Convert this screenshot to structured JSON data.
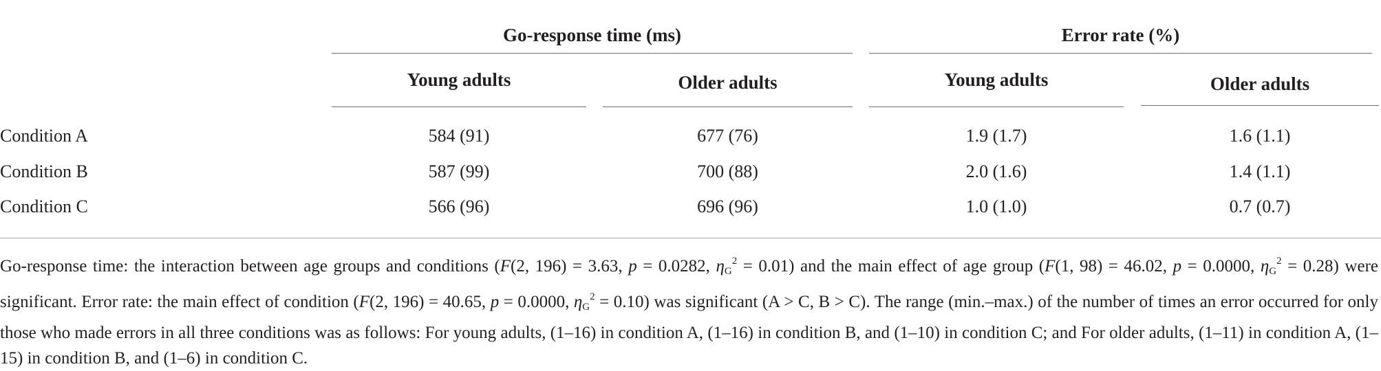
{
  "table": {
    "groups": [
      {
        "label": "Go-response time (ms)"
      },
      {
        "label": "Error rate (%)"
      }
    ],
    "subheaders": [
      "Young adults",
      "Older adults",
      "Young adults",
      "Older adults"
    ],
    "rows": [
      {
        "label": "Condition A",
        "cells": [
          "584 (91)",
          "677 (76)",
          "1.9 (1.7)",
          "1.6 (1.1)"
        ]
      },
      {
        "label": "Condition B",
        "cells": [
          "587 (99)",
          "700 (88)",
          "2.0 (1.6)",
          "1.4 (1.1)"
        ]
      },
      {
        "label": "Condition C",
        "cells": [
          "566 (96)",
          "696 (96)",
          "1.0 (1.0)",
          "0.7 (0.7)"
        ]
      }
    ]
  },
  "footnote": {
    "s1": "Go-response time: the interaction between age groups and conditions (",
    "f": "F",
    "s2": "(2, 196) = 3.63, ",
    "p": "p",
    "s3": " = 0.0282, ",
    "eta": "η",
    "g": "G",
    "two": "2",
    "s4": " = 0.01) and the main effect of age group (",
    "s5": "(1, 98) = 46.02, ",
    "s6": " = 0.0000, ",
    "s7": " = 0.28) were significant. Error rate: the main effect of condition (",
    "s8": "(2, 196) = 40.65, ",
    "s9": " = 0.0000, ",
    "s10": " = 0.10) was significant (A > C, B > C). The range (min.–max.) of the number of times an error occurred for only those who made errors in all three conditions was as follows: For young adults, (1–16) in condition A, (1–16) in condition B, and (1–10) in condition C; and For older adults, (1–11) in condition A, (1–15) in condition B, and (1–6) in condition C."
  }
}
